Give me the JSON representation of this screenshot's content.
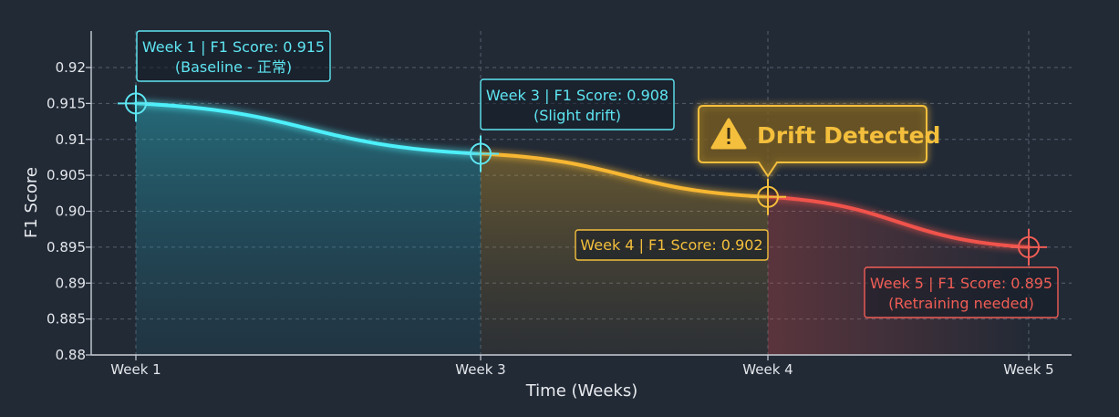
{
  "chart_data": {
    "type": "line",
    "title": "",
    "xlabel": "Time (Weeks)",
    "ylabel": "F1 Score",
    "categories": [
      "Week 1",
      "Week 3",
      "Week 4",
      "Week 5"
    ],
    "x_week_numbers": [
      1,
      3,
      4,
      5
    ],
    "values": [
      0.915,
      0.908,
      0.902,
      0.895
    ],
    "ylim": [
      0.88,
      0.92
    ],
    "yticks": [
      "0.88",
      "0.885",
      "0.89",
      "0.895",
      "0.90",
      "0.905",
      "0.91",
      "0.915",
      "0.92"
    ],
    "grid": true,
    "legend": "none",
    "annotations": [
      {
        "line1": "Week 1 | F1 Score: 0.915",
        "line2": "(Baseline - 正常)",
        "color": "#5ee6f2"
      },
      {
        "line1": "Week 3 | F1 Score: 0.908",
        "line2": "(Slight drift)",
        "color": "#5ee6f2"
      },
      {
        "line1": "Week 4 | F1 Score: 0.902",
        "line2": "",
        "color": "#f4bf3c"
      },
      {
        "line1": "Week 5 | F1 Score: 0.895",
        "line2": "(Retraining needed)",
        "color": "#f05d55"
      }
    ],
    "alert": {
      "label": "Drift Detected",
      "icon": "warning-triangle-icon",
      "color": "#f4bf3c"
    },
    "segment_colors": [
      "#4ef0fa",
      "#f7b733",
      "#f0524c"
    ]
  }
}
